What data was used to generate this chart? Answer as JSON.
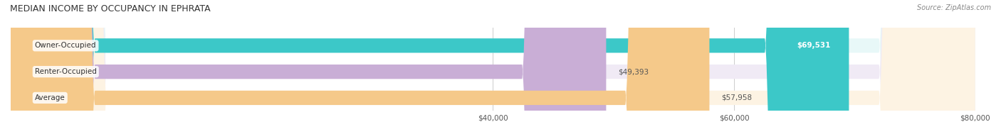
{
  "title": "MEDIAN INCOME BY OCCUPANCY IN EPHRATA",
  "source": "Source: ZipAtlas.com",
  "categories": [
    "Owner-Occupied",
    "Renter-Occupied",
    "Average"
  ],
  "values": [
    69531,
    49393,
    57958
  ],
  "labels": [
    "$69,531",
    "$49,393",
    "$57,958"
  ],
  "bar_colors": [
    "#3cc8c8",
    "#c9aed6",
    "#f5c98a"
  ],
  "bar_bg_colors": [
    "#e8f8f8",
    "#f0eaf5",
    "#fdf3e3"
  ],
  "xlim": [
    0,
    80000
  ],
  "xticks": [
    40000,
    60000,
    80000
  ],
  "xtick_labels": [
    "$40,000",
    "$60,000",
    "$80,000"
  ],
  "figsize": [
    14.06,
    1.96
  ],
  "dpi": 100
}
